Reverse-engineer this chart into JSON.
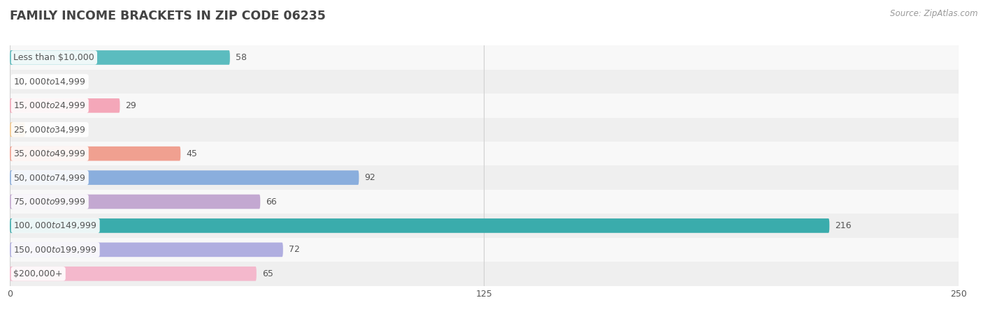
{
  "title": "FAMILY INCOME BRACKETS IN ZIP CODE 06235",
  "source": "Source: ZipAtlas.com",
  "categories": [
    "Less than $10,000",
    "$10,000 to $14,999",
    "$15,000 to $24,999",
    "$25,000 to $34,999",
    "$35,000 to $49,999",
    "$50,000 to $74,999",
    "$75,000 to $99,999",
    "$100,000 to $149,999",
    "$150,000 to $199,999",
    "$200,000+"
  ],
  "values": [
    58,
    0,
    29,
    4,
    45,
    92,
    66,
    216,
    72,
    65
  ],
  "bar_colors": [
    "#5bbcbf",
    "#a89fcc",
    "#f4a7b9",
    "#f5c98a",
    "#f0a090",
    "#8aaedd",
    "#c3a8d1",
    "#3aacac",
    "#b0aee0",
    "#f4b8cc"
  ],
  "bg_row_colors": [
    "#efefef",
    "#f8f8f8"
  ],
  "xlim": [
    0,
    250
  ],
  "xticks": [
    0,
    125,
    250
  ],
  "background_color": "#ffffff",
  "title_color": "#444444",
  "label_color": "#555555",
  "value_color": "#555555",
  "source_color": "#999999",
  "title_fontsize": 12.5,
  "label_fontsize": 9,
  "value_fontsize": 9,
  "source_fontsize": 8.5,
  "bar_height": 0.6
}
